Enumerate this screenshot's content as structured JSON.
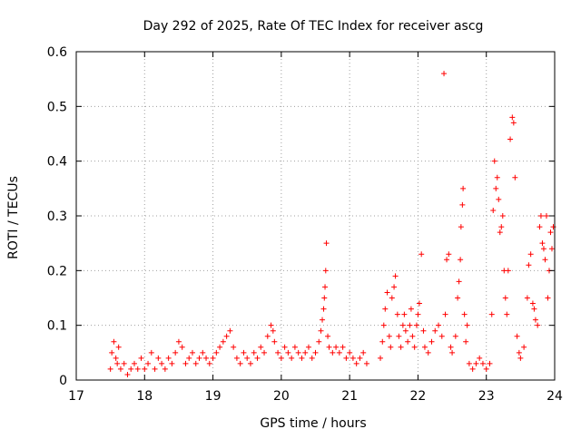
{
  "chart_data": {
    "type": "scatter",
    "title": "Day 292 of 2025, Rate Of TEC Index for receiver ascg",
    "xlabel": "GPS time / hours",
    "ylabel": "ROTI / TECUs",
    "xlim": [
      17,
      24
    ],
    "ylim": [
      0,
      0.6
    ],
    "xticks": [
      "17",
      "18",
      "19",
      "20",
      "21",
      "22",
      "23",
      "24"
    ],
    "yticks": [
      "0",
      "0.1",
      "0.2",
      "0.3",
      "0.4",
      "0.5",
      "0.6"
    ],
    "grid": true,
    "marker": "+",
    "color": "#ff0000",
    "series": [
      {
        "points": [
          [
            17.5,
            0.02
          ],
          [
            17.52,
            0.05
          ],
          [
            17.55,
            0.07
          ],
          [
            17.58,
            0.04
          ],
          [
            17.6,
            0.03
          ],
          [
            17.62,
            0.06
          ],
          [
            17.65,
            0.02
          ],
          [
            17.7,
            0.03
          ],
          [
            17.75,
            0.01
          ],
          [
            17.8,
            0.02
          ],
          [
            17.85,
            0.03
          ],
          [
            17.9,
            0.02
          ],
          [
            17.95,
            0.04
          ],
          [
            18.0,
            0.02
          ],
          [
            18.05,
            0.03
          ],
          [
            18.1,
            0.05
          ],
          [
            18.15,
            0.02
          ],
          [
            18.2,
            0.04
          ],
          [
            18.25,
            0.03
          ],
          [
            18.3,
            0.02
          ],
          [
            18.35,
            0.04
          ],
          [
            18.4,
            0.03
          ],
          [
            18.45,
            0.05
          ],
          [
            18.5,
            0.07
          ],
          [
            18.55,
            0.06
          ],
          [
            18.6,
            0.03
          ],
          [
            18.65,
            0.04
          ],
          [
            18.7,
            0.05
          ],
          [
            18.75,
            0.03
          ],
          [
            18.8,
            0.04
          ],
          [
            18.85,
            0.05
          ],
          [
            18.9,
            0.04
          ],
          [
            18.95,
            0.03
          ],
          [
            19.0,
            0.04
          ],
          [
            19.05,
            0.05
          ],
          [
            19.1,
            0.06
          ],
          [
            19.15,
            0.07
          ],
          [
            19.2,
            0.08
          ],
          [
            19.25,
            0.09
          ],
          [
            19.3,
            0.06
          ],
          [
            19.35,
            0.04
          ],
          [
            19.4,
            0.03
          ],
          [
            19.45,
            0.05
          ],
          [
            19.5,
            0.04
          ],
          [
            19.55,
            0.03
          ],
          [
            19.6,
            0.05
          ],
          [
            19.65,
            0.04
          ],
          [
            19.7,
            0.06
          ],
          [
            19.75,
            0.05
          ],
          [
            19.8,
            0.08
          ],
          [
            19.85,
            0.1
          ],
          [
            19.88,
            0.09
          ],
          [
            19.9,
            0.07
          ],
          [
            19.95,
            0.05
          ],
          [
            20.0,
            0.04
          ],
          [
            20.05,
            0.06
          ],
          [
            20.1,
            0.05
          ],
          [
            20.15,
            0.04
          ],
          [
            20.2,
            0.06
          ],
          [
            20.25,
            0.05
          ],
          [
            20.3,
            0.04
          ],
          [
            20.35,
            0.05
          ],
          [
            20.4,
            0.06
          ],
          [
            20.45,
            0.04
          ],
          [
            20.5,
            0.05
          ],
          [
            20.55,
            0.07
          ],
          [
            20.58,
            0.09
          ],
          [
            20.6,
            0.11
          ],
          [
            20.62,
            0.13
          ],
          [
            20.63,
            0.15
          ],
          [
            20.64,
            0.17
          ],
          [
            20.65,
            0.2
          ],
          [
            20.66,
            0.25
          ],
          [
            20.68,
            0.08
          ],
          [
            20.7,
            0.06
          ],
          [
            20.75,
            0.05
          ],
          [
            20.8,
            0.06
          ],
          [
            20.85,
            0.05
          ],
          [
            20.9,
            0.06
          ],
          [
            20.95,
            0.04
          ],
          [
            21.0,
            0.05
          ],
          [
            21.05,
            0.04
          ],
          [
            21.1,
            0.03
          ],
          [
            21.15,
            0.04
          ],
          [
            21.2,
            0.05
          ],
          [
            21.25,
            0.03
          ],
          [
            21.45,
            0.04
          ],
          [
            21.48,
            0.07
          ],
          [
            21.5,
            0.1
          ],
          [
            21.52,
            0.13
          ],
          [
            21.55,
            0.16
          ],
          [
            21.58,
            0.08
          ],
          [
            21.6,
            0.06
          ],
          [
            21.62,
            0.15
          ],
          [
            21.65,
            0.17
          ],
          [
            21.67,
            0.19
          ],
          [
            21.7,
            0.12
          ],
          [
            21.72,
            0.08
          ],
          [
            21.75,
            0.06
          ],
          [
            21.78,
            0.1
          ],
          [
            21.8,
            0.12
          ],
          [
            21.82,
            0.09
          ],
          [
            21.85,
            0.07
          ],
          [
            21.88,
            0.1
          ],
          [
            21.9,
            0.13
          ],
          [
            21.92,
            0.08
          ],
          [
            21.95,
            0.06
          ],
          [
            21.98,
            0.1
          ],
          [
            22.0,
            0.12
          ],
          [
            22.02,
            0.14
          ],
          [
            22.05,
            0.23
          ],
          [
            22.08,
            0.09
          ],
          [
            22.1,
            0.06
          ],
          [
            22.15,
            0.05
          ],
          [
            22.2,
            0.07
          ],
          [
            22.25,
            0.09
          ],
          [
            22.3,
            0.1
          ],
          [
            22.35,
            0.08
          ],
          [
            22.38,
            0.56
          ],
          [
            22.4,
            0.12
          ],
          [
            22.42,
            0.22
          ],
          [
            22.45,
            0.23
          ],
          [
            22.48,
            0.06
          ],
          [
            22.5,
            0.05
          ],
          [
            22.55,
            0.08
          ],
          [
            22.58,
            0.15
          ],
          [
            22.6,
            0.18
          ],
          [
            22.62,
            0.22
          ],
          [
            22.63,
            0.28
          ],
          [
            22.65,
            0.32
          ],
          [
            22.66,
            0.35
          ],
          [
            22.68,
            0.12
          ],
          [
            22.7,
            0.07
          ],
          [
            22.72,
            0.1
          ],
          [
            22.75,
            0.03
          ],
          [
            22.8,
            0.02
          ],
          [
            22.85,
            0.03
          ],
          [
            22.9,
            0.04
          ],
          [
            22.95,
            0.03
          ],
          [
            23.0,
            0.02
          ],
          [
            23.05,
            0.03
          ],
          [
            23.08,
            0.12
          ],
          [
            23.1,
            0.31
          ],
          [
            23.12,
            0.4
          ],
          [
            23.14,
            0.35
          ],
          [
            23.16,
            0.37
          ],
          [
            23.18,
            0.33
          ],
          [
            23.2,
            0.27
          ],
          [
            23.22,
            0.28
          ],
          [
            23.24,
            0.3
          ],
          [
            23.26,
            0.2
          ],
          [
            23.28,
            0.15
          ],
          [
            23.3,
            0.12
          ],
          [
            23.32,
            0.2
          ],
          [
            23.35,
            0.44
          ],
          [
            23.38,
            0.48
          ],
          [
            23.4,
            0.47
          ],
          [
            23.42,
            0.37
          ],
          [
            23.45,
            0.08
          ],
          [
            23.48,
            0.05
          ],
          [
            23.5,
            0.04
          ],
          [
            23.55,
            0.06
          ],
          [
            23.6,
            0.15
          ],
          [
            23.62,
            0.21
          ],
          [
            23.65,
            0.23
          ],
          [
            23.68,
            0.14
          ],
          [
            23.7,
            0.13
          ],
          [
            23.72,
            0.11
          ],
          [
            23.75,
            0.1
          ],
          [
            23.78,
            0.28
          ],
          [
            23.8,
            0.3
          ],
          [
            23.82,
            0.25
          ],
          [
            23.84,
            0.24
          ],
          [
            23.86,
            0.22
          ],
          [
            23.88,
            0.3
          ],
          [
            23.9,
            0.15
          ],
          [
            23.92,
            0.2
          ],
          [
            23.94,
            0.27
          ],
          [
            23.96,
            0.24
          ],
          [
            23.98,
            0.28
          ]
        ]
      }
    ]
  }
}
